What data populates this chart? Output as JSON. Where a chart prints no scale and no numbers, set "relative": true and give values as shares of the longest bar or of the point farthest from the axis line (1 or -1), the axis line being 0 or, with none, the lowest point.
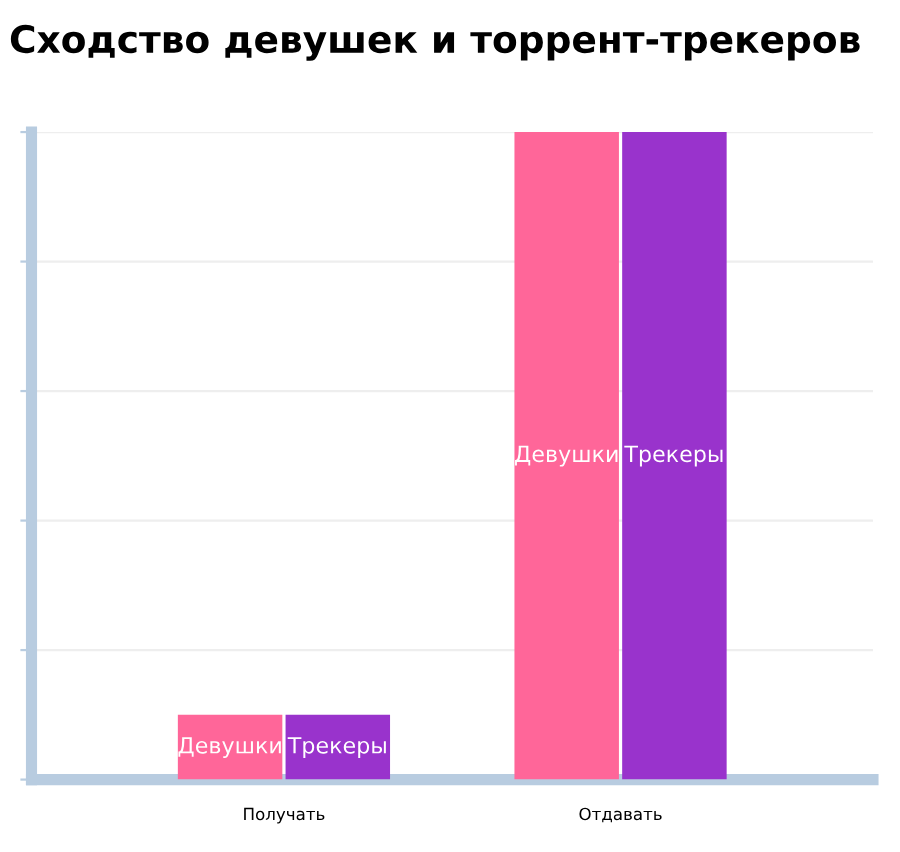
{
  "chart_data": {
    "type": "bar",
    "title": "Сходство девушек и торрент-трекеров",
    "categories": [
      "Получать",
      "Отдавать"
    ],
    "relative": true,
    "grid": "y",
    "legend": false,
    "series": [
      {
        "name": "Девушки",
        "color": "#ff6699",
        "values": [
          0.1,
          1
        ]
      },
      {
        "name": "Трекеры",
        "color": "#9933cc",
        "values": [
          0.1,
          1
        ]
      }
    ]
  }
}
